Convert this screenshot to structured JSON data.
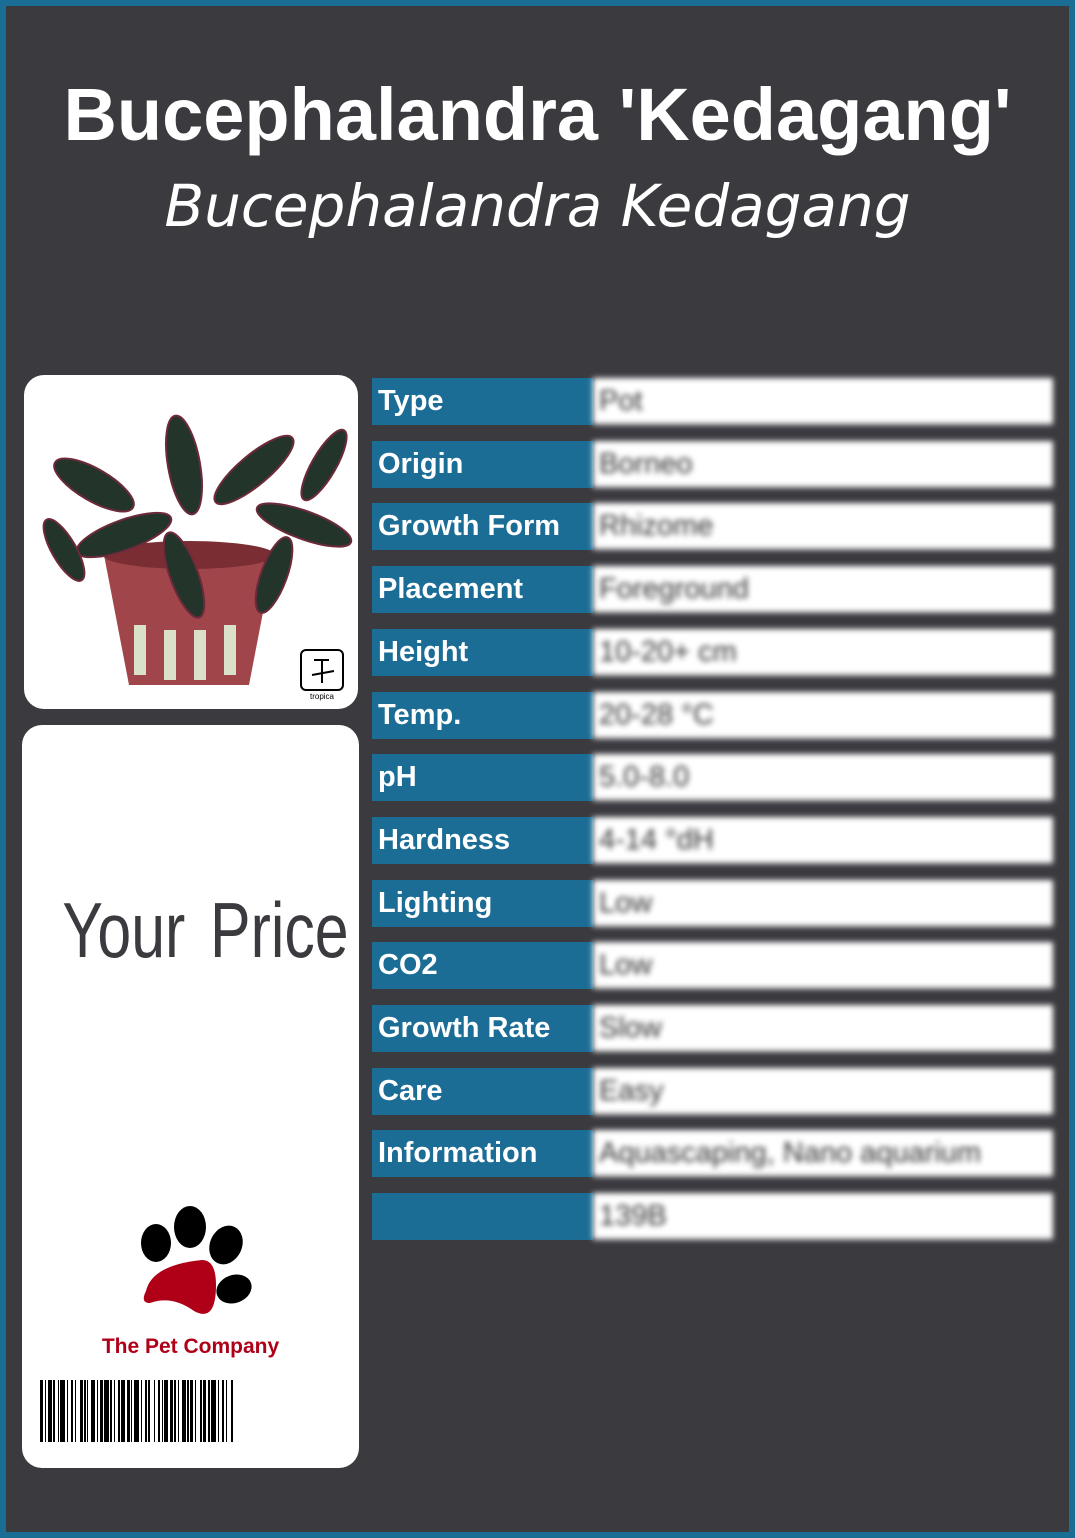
{
  "header": {
    "title": "Bucephalandra 'Kedagang'",
    "subtitle": "Bucephalandra Kedagang"
  },
  "image": {
    "alt_icon": "plant-in-pot-image",
    "badge_text": "tropica"
  },
  "price": {
    "label": "Your Price"
  },
  "brand": {
    "name": "The Pet Company",
    "icon": "paw-print-logo"
  },
  "colors": {
    "border": "#1a6e96",
    "background": "#3a3a3f",
    "label_bg": "#1c6d96",
    "brand_red": "#b00018"
  },
  "specs": [
    {
      "label": "Type",
      "value": "Pot"
    },
    {
      "label": "Origin",
      "value": "Borneo"
    },
    {
      "label": "Growth Form",
      "value": "Rhizome"
    },
    {
      "label": "Placement",
      "value": "Foreground"
    },
    {
      "label": "Height",
      "value": "10-20+ cm"
    },
    {
      "label": "Temp.",
      "value": "20-28 °C"
    },
    {
      "label": "pH",
      "value": "5.0-8.0"
    },
    {
      "label": "Hardness",
      "value": "4-14 °dH"
    },
    {
      "label": "Lighting",
      "value": "Low"
    },
    {
      "label": "CO2",
      "value": "Low"
    },
    {
      "label": "Growth Rate",
      "value": "Slow"
    },
    {
      "label": "Care",
      "value": "Easy"
    },
    {
      "label": "Information",
      "value": "Aquascaping, Nano aquarium"
    },
    {
      "label": "",
      "value": "139B"
    }
  ]
}
